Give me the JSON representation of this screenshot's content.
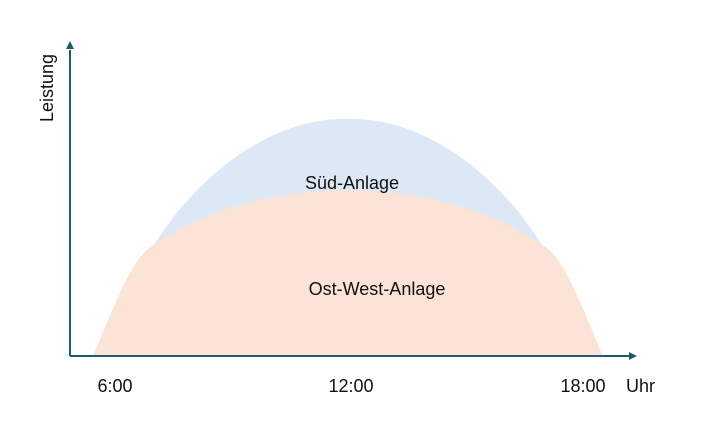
{
  "chart_data": {
    "type": "area",
    "xlabel": "Uhr",
    "ylabel": "Leistung",
    "x_ticks": [
      "6:00",
      "12:00",
      "18:00"
    ],
    "series": [
      {
        "name": "Süd-Anlage",
        "color": "#dce8f5",
        "x": [
          "7:00",
          "8:00",
          "9:00",
          "10:00",
          "11:00",
          "12:00",
          "13:00",
          "14:00",
          "15:00",
          "16:00",
          "17:00"
        ],
        "values": [
          0.35,
          0.61,
          0.79,
          0.91,
          0.98,
          1.0,
          0.98,
          0.91,
          0.79,
          0.61,
          0.35
        ]
      },
      {
        "name": "Ost-West-Anlage",
        "color": "#fbe3d6",
        "x": [
          "6:00",
          "7:00",
          "8:00",
          "9:00",
          "10:00",
          "11:00",
          "12:00",
          "13:00",
          "14:00",
          "15:00",
          "16:00",
          "17:00",
          "18:00"
        ],
        "values": [
          0.0,
          0.39,
          0.53,
          0.61,
          0.66,
          0.69,
          0.7,
          0.69,
          0.66,
          0.61,
          0.53,
          0.39,
          0.0
        ]
      }
    ],
    "axis_color": "#1f5b6f",
    "grid": false,
    "legend": "none"
  }
}
